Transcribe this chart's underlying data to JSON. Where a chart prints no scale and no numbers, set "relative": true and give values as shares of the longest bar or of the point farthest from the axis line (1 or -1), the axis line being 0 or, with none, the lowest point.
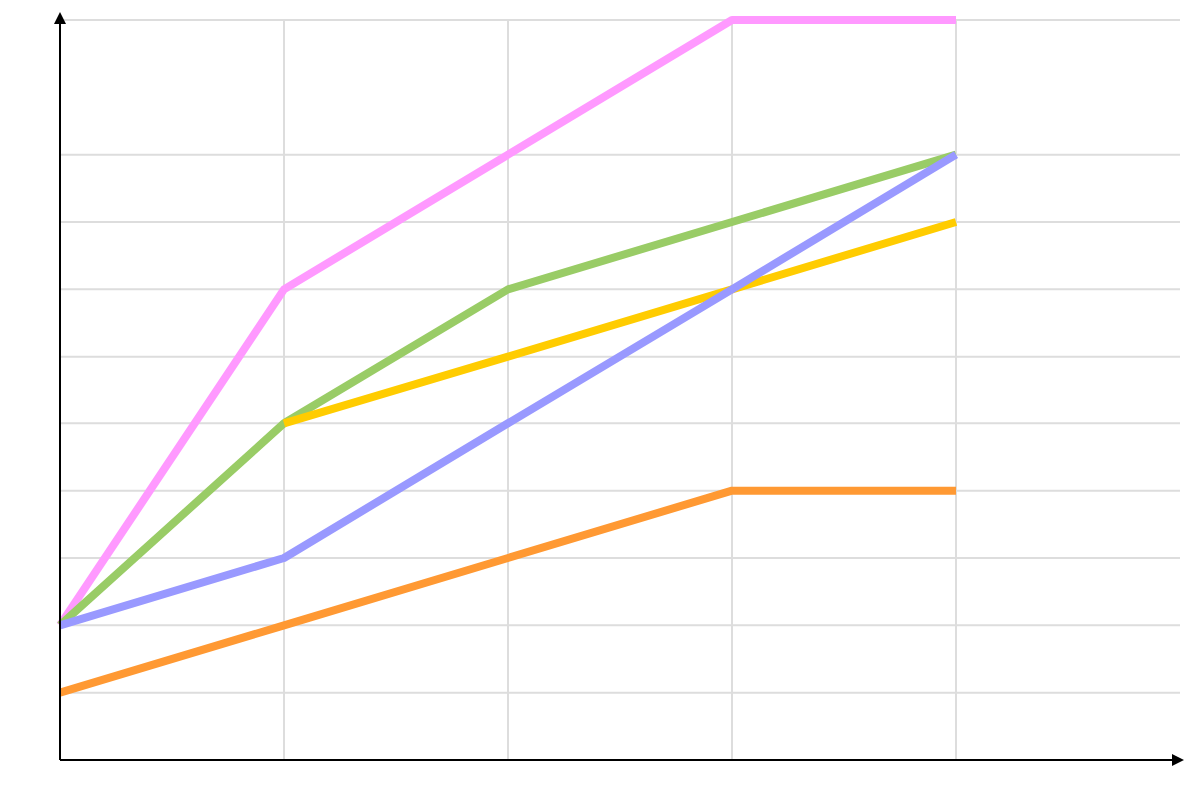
{
  "chart_data": {
    "type": "line",
    "relative": true,
    "grid": true,
    "marker": "none",
    "line_style": "solid",
    "categories": [
      null,
      null,
      null,
      null,
      null
    ],
    "series": [
      {
        "color": "#ff99ff",
        "values": [
          0.182,
          0.636,
          0.818,
          1,
          1
        ]
      },
      {
        "color": "#99cc66",
        "values": [
          0.182,
          0.455,
          0.636,
          0.727,
          0.818
        ]
      },
      {
        "color": "#ffcc00",
        "values": [
          null,
          0.455,
          0.545,
          0.636,
          0.727
        ]
      },
      {
        "color": "#9999ff",
        "values": [
          0.182,
          0.273,
          0.455,
          0.636,
          0.818
        ]
      },
      {
        "color": "#ff9933",
        "values": [
          0.091,
          0.182,
          0.273,
          0.364,
          0.364
        ]
      }
    ]
  }
}
